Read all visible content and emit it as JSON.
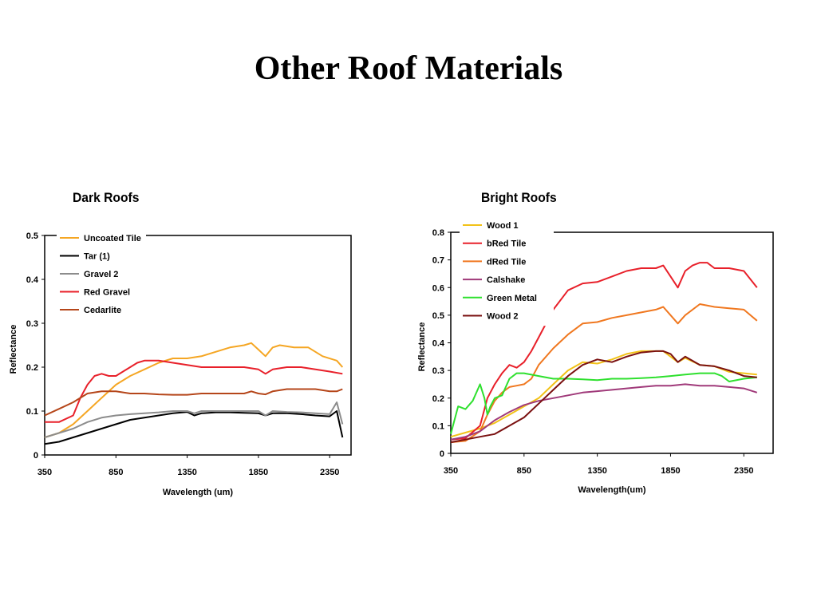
{
  "page": {
    "title": "Other Roof Materials"
  },
  "chart_data": [
    {
      "type": "line",
      "title": "Dark Roofs",
      "xlabel": "Wavelength (um)",
      "ylabel": "Reflectance",
      "xlim": [
        350,
        2500
      ],
      "ylim": [
        0,
        0.5
      ],
      "x_ticks": [
        "350",
        "850",
        "1350",
        "1850",
        "2350"
      ],
      "y_ticks": [
        "0",
        "0.1",
        "0.2",
        "0.3",
        "0.4",
        "0.5"
      ],
      "grid": false,
      "legend": "top-left",
      "series": [
        {
          "name": "Uncoated Tile",
          "color": "#f5a623",
          "x": [
            350,
            450,
            550,
            650,
            750,
            850,
            950,
            1050,
            1150,
            1250,
            1350,
            1450,
            1550,
            1650,
            1750,
            1800,
            1850,
            1900,
            1950,
            2000,
            2100,
            2200,
            2300,
            2400,
            2440
          ],
          "y": [
            0.04,
            0.05,
            0.07,
            0.1,
            0.13,
            0.16,
            0.18,
            0.195,
            0.21,
            0.22,
            0.22,
            0.225,
            0.235,
            0.245,
            0.25,
            0.255,
            0.24,
            0.225,
            0.245,
            0.25,
            0.245,
            0.245,
            0.225,
            0.215,
            0.2
          ]
        },
        {
          "name": "Tar (1)",
          "color": "#000000",
          "x": [
            350,
            450,
            550,
            650,
            750,
            850,
            950,
            1050,
            1150,
            1250,
            1350,
            1400,
            1450,
            1550,
            1650,
            1750,
            1850,
            1900,
            1950,
            2050,
            2150,
            2250,
            2350,
            2400,
            2440
          ],
          "y": [
            0.025,
            0.03,
            0.04,
            0.05,
            0.06,
            0.07,
            0.08,
            0.085,
            0.09,
            0.095,
            0.098,
            0.09,
            0.095,
            0.097,
            0.097,
            0.096,
            0.095,
            0.09,
            0.095,
            0.095,
            0.093,
            0.09,
            0.088,
            0.1,
            0.04
          ]
        },
        {
          "name": "Gravel 2",
          "color": "#8c8c8c",
          "x": [
            350,
            450,
            550,
            650,
            750,
            850,
            950,
            1050,
            1150,
            1250,
            1350,
            1400,
            1450,
            1550,
            1650,
            1750,
            1850,
            1900,
            1950,
            2050,
            2150,
            2250,
            2350,
            2400,
            2440
          ],
          "y": [
            0.04,
            0.05,
            0.06,
            0.075,
            0.085,
            0.09,
            0.093,
            0.095,
            0.097,
            0.1,
            0.1,
            0.095,
            0.1,
            0.1,
            0.1,
            0.1,
            0.1,
            0.09,
            0.1,
            0.098,
            0.097,
            0.095,
            0.093,
            0.12,
            0.07
          ]
        },
        {
          "name": "Red Gravel",
          "color": "#e8202a",
          "x": [
            350,
            450,
            550,
            600,
            650,
            700,
            750,
            800,
            850,
            900,
            950,
            1000,
            1050,
            1150,
            1250,
            1350,
            1450,
            1550,
            1650,
            1750,
            1850,
            1900,
            1950,
            2050,
            2150,
            2250,
            2350,
            2440
          ],
          "y": [
            0.075,
            0.075,
            0.09,
            0.13,
            0.16,
            0.18,
            0.185,
            0.18,
            0.18,
            0.19,
            0.2,
            0.21,
            0.215,
            0.215,
            0.21,
            0.205,
            0.2,
            0.2,
            0.2,
            0.2,
            0.195,
            0.185,
            0.195,
            0.2,
            0.2,
            0.195,
            0.19,
            0.185
          ]
        },
        {
          "name": "Cedarlite",
          "color": "#b5461a",
          "x": [
            350,
            450,
            550,
            650,
            750,
            850,
            950,
            1050,
            1150,
            1250,
            1350,
            1450,
            1550,
            1650,
            1750,
            1800,
            1850,
            1900,
            1950,
            2050,
            2150,
            2250,
            2350,
            2400,
            2440
          ],
          "y": [
            0.09,
            0.105,
            0.12,
            0.14,
            0.145,
            0.145,
            0.14,
            0.14,
            0.138,
            0.137,
            0.137,
            0.14,
            0.14,
            0.14,
            0.14,
            0.145,
            0.14,
            0.138,
            0.145,
            0.15,
            0.15,
            0.15,
            0.145,
            0.145,
            0.15
          ]
        }
      ]
    },
    {
      "type": "line",
      "title": "Bright Roofs",
      "xlabel": "Wavelength(um)",
      "ylabel": "Reflectance",
      "xlim": [
        350,
        2550
      ],
      "ylim": [
        0,
        0.8
      ],
      "x_ticks": [
        "350",
        "850",
        "1350",
        "1850",
        "2350"
      ],
      "y_ticks": [
        "0",
        "0.1",
        "0.2",
        "0.3",
        "0.4",
        "0.5",
        "0.6",
        "0.7",
        "0.8"
      ],
      "grid": false,
      "legend": "top-left",
      "series": [
        {
          "name": "Wood 1",
          "color": "#f2c218",
          "x": [
            350,
            450,
            550,
            650,
            750,
            850,
            950,
            1050,
            1150,
            1250,
            1350,
            1450,
            1550,
            1650,
            1750,
            1800,
            1850,
            1900,
            1950,
            2050,
            2150,
            2250,
            2350,
            2440
          ],
          "y": [
            0.06,
            0.075,
            0.09,
            0.11,
            0.14,
            0.17,
            0.2,
            0.25,
            0.3,
            0.33,
            0.325,
            0.34,
            0.36,
            0.37,
            0.37,
            0.37,
            0.35,
            0.33,
            0.345,
            0.32,
            0.315,
            0.295,
            0.29,
            0.285
          ]
        },
        {
          "name": "bRed Tile",
          "color": "#e8202a",
          "x": [
            350,
            450,
            550,
            600,
            650,
            700,
            750,
            800,
            850,
            900,
            950,
            1050,
            1150,
            1250,
            1350,
            1450,
            1550,
            1650,
            1750,
            1800,
            1850,
            1900,
            1950,
            2000,
            2050,
            2100,
            2150,
            2250,
            2350,
            2440
          ],
          "y": [
            0.05,
            0.055,
            0.1,
            0.2,
            0.25,
            0.29,
            0.32,
            0.31,
            0.33,
            0.37,
            0.42,
            0.52,
            0.59,
            0.615,
            0.62,
            0.64,
            0.66,
            0.67,
            0.67,
            0.68,
            0.64,
            0.6,
            0.66,
            0.68,
            0.69,
            0.69,
            0.67,
            0.67,
            0.66,
            0.6
          ]
        },
        {
          "name": "dRed Tile",
          "color": "#f07820",
          "x": [
            350,
            450,
            550,
            600,
            650,
            700,
            750,
            800,
            850,
            900,
            950,
            1050,
            1150,
            1250,
            1350,
            1450,
            1550,
            1650,
            1750,
            1800,
            1850,
            1900,
            1950,
            2050,
            2150,
            2250,
            2350,
            2440
          ],
          "y": [
            0.04,
            0.045,
            0.08,
            0.14,
            0.19,
            0.22,
            0.24,
            0.245,
            0.25,
            0.27,
            0.32,
            0.38,
            0.43,
            0.47,
            0.475,
            0.49,
            0.5,
            0.51,
            0.52,
            0.53,
            0.5,
            0.47,
            0.5,
            0.54,
            0.53,
            0.525,
            0.52,
            0.48
          ]
        },
        {
          "name": "Calshake",
          "color": "#a03a7a",
          "x": [
            350,
            450,
            550,
            650,
            750,
            850,
            950,
            1050,
            1150,
            1250,
            1350,
            1450,
            1550,
            1650,
            1750,
            1850,
            1950,
            2050,
            2150,
            2250,
            2350,
            2440
          ],
          "y": [
            0.05,
            0.06,
            0.08,
            0.12,
            0.15,
            0.175,
            0.19,
            0.2,
            0.21,
            0.22,
            0.225,
            0.23,
            0.235,
            0.24,
            0.245,
            0.245,
            0.25,
            0.245,
            0.245,
            0.24,
            0.235,
            0.22
          ]
        },
        {
          "name": "Green Metal",
          "color": "#2ee02e",
          "x": [
            350,
            400,
            450,
            500,
            550,
            580,
            600,
            620,
            650,
            700,
            750,
            800,
            850,
            950,
            1050,
            1150,
            1250,
            1350,
            1450,
            1550,
            1650,
            1750,
            1850,
            1950,
            2050,
            2150,
            2200,
            2250,
            2350,
            2440
          ],
          "y": [
            0.07,
            0.17,
            0.16,
            0.19,
            0.25,
            0.2,
            0.14,
            0.17,
            0.2,
            0.21,
            0.27,
            0.29,
            0.29,
            0.28,
            0.27,
            0.27,
            0.268,
            0.265,
            0.27,
            0.27,
            0.272,
            0.275,
            0.28,
            0.285,
            0.29,
            0.29,
            0.28,
            0.26,
            0.27,
            0.275
          ]
        },
        {
          "name": "Wood 2",
          "color": "#7a1010",
          "x": [
            350,
            450,
            550,
            650,
            750,
            850,
            950,
            1050,
            1150,
            1250,
            1350,
            1450,
            1550,
            1650,
            1750,
            1800,
            1850,
            1900,
            1950,
            2050,
            2150,
            2250,
            2350,
            2440
          ],
          "y": [
            0.04,
            0.05,
            0.06,
            0.07,
            0.1,
            0.13,
            0.18,
            0.23,
            0.28,
            0.32,
            0.34,
            0.33,
            0.35,
            0.365,
            0.37,
            0.37,
            0.36,
            0.33,
            0.35,
            0.32,
            0.315,
            0.3,
            0.28,
            0.275
          ]
        }
      ]
    }
  ]
}
